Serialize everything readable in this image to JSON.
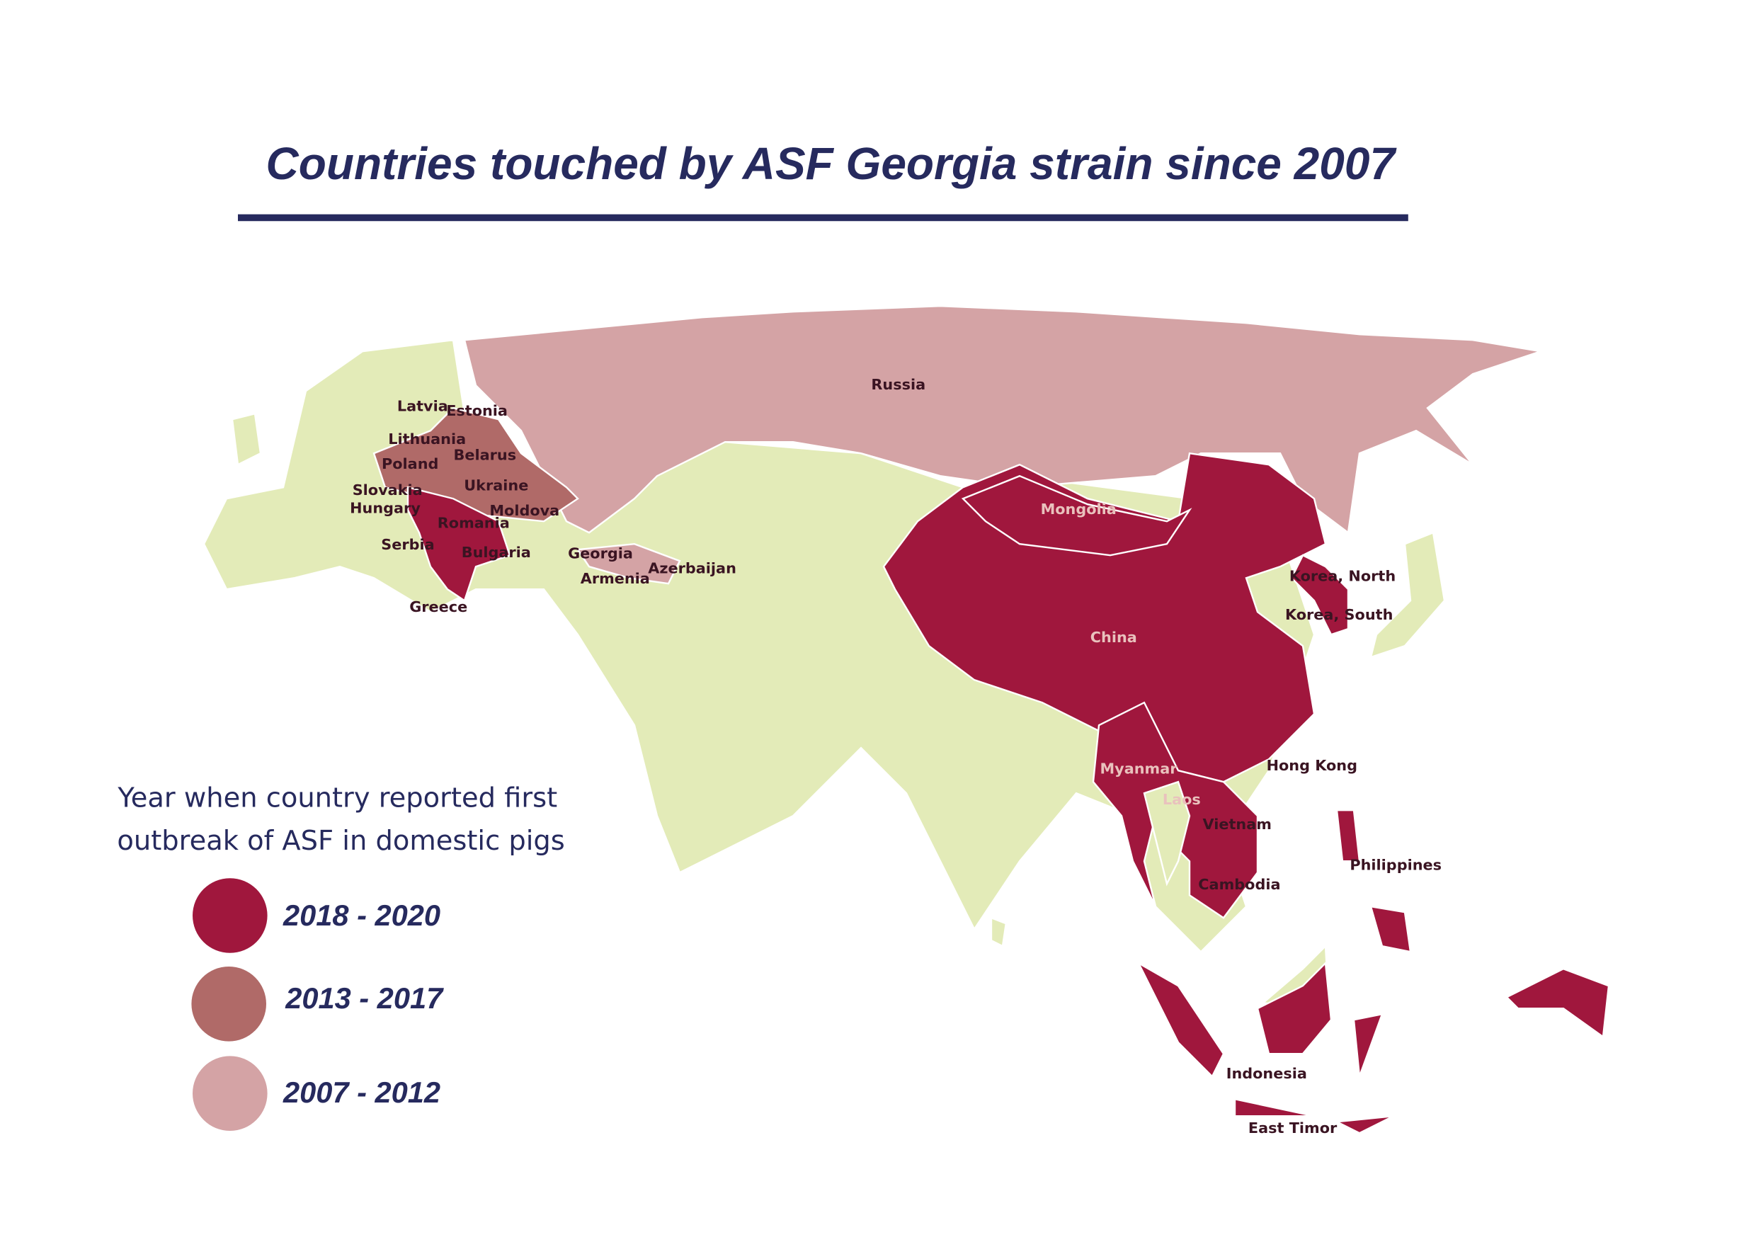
{
  "title": "Countries touched by ASF Georgia strain since 2007",
  "legend": {
    "title_lines": [
      "Year when country reported first",
      "outbreak of ASF in domestic pigs"
    ],
    "items": [
      {
        "label": "2018 - 2020",
        "color": "#a0173d"
      },
      {
        "label": "2013 - 2017",
        "color": "#b06a68"
      },
      {
        "label": "2007 - 2012",
        "color": "#d4a3a5"
      }
    ]
  },
  "countries": [
    "Russia",
    "Latvia",
    "Estonia",
    "Lithuania",
    "Belarus",
    "Poland",
    "Ukraine",
    "Slovakia",
    "Hungary",
    "Moldova",
    "Romania",
    "Serbia",
    "Bulgaria",
    "Greece",
    "Georgia",
    "Armenia",
    "Azerbaijan",
    "Mongolia",
    "China",
    "Korea, North",
    "Korea, South",
    "Hong Kong",
    "Myanmar",
    "Laos",
    "Vietnam",
    "Cambodia",
    "Philippines",
    "Indonesia",
    "East Timor"
  ]
}
